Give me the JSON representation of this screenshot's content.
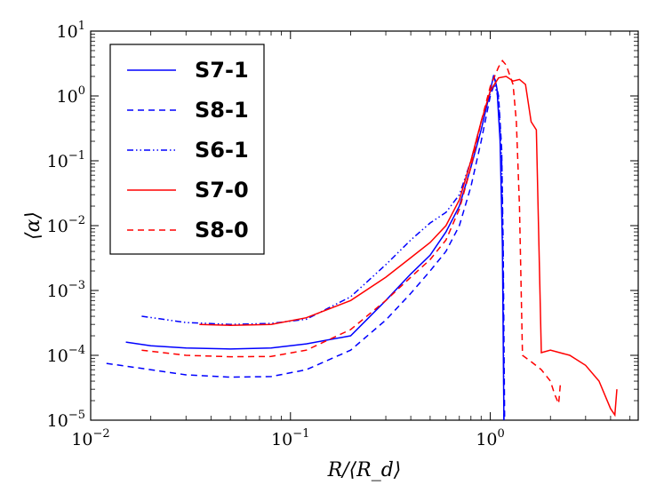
{
  "chart_data": {
    "type": "line",
    "title": "",
    "xlabel": "R/⟨R_d⟩",
    "ylabel": "⟨α⟩",
    "xscale": "log",
    "yscale": "log",
    "xlim": [
      0.01,
      5.5
    ],
    "ylim": [
      1e-05,
      10
    ],
    "legend_position": "upper-left",
    "x_ticks": [
      {
        "value": 0.01,
        "base": "10",
        "exp": "−2"
      },
      {
        "value": 0.1,
        "base": "10",
        "exp": "−1"
      },
      {
        "value": 1,
        "base": "10",
        "exp": "0"
      }
    ],
    "y_ticks": [
      {
        "value": 1e-05,
        "base": "10",
        "exp": "−5"
      },
      {
        "value": 0.0001,
        "base": "10",
        "exp": "−4"
      },
      {
        "value": 0.001,
        "base": "10",
        "exp": "−3"
      },
      {
        "value": 0.01,
        "base": "10",
        "exp": "−2"
      },
      {
        "value": 0.1,
        "base": "10",
        "exp": "−1"
      },
      {
        "value": 1,
        "base": "10",
        "exp": "0"
      },
      {
        "value": 10,
        "base": "10",
        "exp": "1"
      }
    ],
    "series": [
      {
        "name": "S7-1",
        "color": "#0000ff",
        "style": "solid",
        "points": [
          [
            0.015,
            0.00016
          ],
          [
            0.02,
            0.00014
          ],
          [
            0.03,
            0.00013
          ],
          [
            0.05,
            0.000125
          ],
          [
            0.08,
            0.00013
          ],
          [
            0.12,
            0.00015
          ],
          [
            0.2,
            0.0002
          ],
          [
            0.3,
            0.0007
          ],
          [
            0.4,
            0.0018
          ],
          [
            0.5,
            0.0035
          ],
          [
            0.6,
            0.008
          ],
          [
            0.7,
            0.02
          ],
          [
            0.8,
            0.08
          ],
          [
            0.9,
            0.3
          ],
          [
            1.0,
            1.2
          ],
          [
            1.04,
            2.1
          ],
          [
            1.08,
            1.3
          ],
          [
            1.12,
            0.2
          ],
          [
            1.15,
            0.005
          ],
          [
            1.17,
            1e-05
          ]
        ]
      },
      {
        "name": "S8-1",
        "color": "#0000ff",
        "style": "dashed",
        "points": [
          [
            0.012,
            7.5e-05
          ],
          [
            0.02,
            6e-05
          ],
          [
            0.03,
            5e-05
          ],
          [
            0.05,
            4.6e-05
          ],
          [
            0.08,
            4.7e-05
          ],
          [
            0.12,
            6e-05
          ],
          [
            0.2,
            0.00012
          ],
          [
            0.3,
            0.00035
          ],
          [
            0.4,
            0.0009
          ],
          [
            0.5,
            0.002
          ],
          [
            0.6,
            0.004
          ],
          [
            0.7,
            0.01
          ],
          [
            0.8,
            0.04
          ],
          [
            0.9,
            0.2
          ],
          [
            1.0,
            1.0
          ],
          [
            1.06,
            1.7
          ],
          [
            1.1,
            1.0
          ],
          [
            1.14,
            0.15
          ],
          [
            1.16,
            0.005
          ],
          [
            1.18,
            1e-05
          ]
        ]
      },
      {
        "name": "S6-1",
        "color": "#0000ff",
        "style": "dashdotdot",
        "points": [
          [
            0.018,
            0.0004
          ],
          [
            0.03,
            0.00032
          ],
          [
            0.05,
            0.0003
          ],
          [
            0.08,
            0.00031
          ],
          [
            0.12,
            0.00036
          ],
          [
            0.2,
            0.0008
          ],
          [
            0.3,
            0.0025
          ],
          [
            0.4,
            0.006
          ],
          [
            0.5,
            0.011
          ],
          [
            0.6,
            0.016
          ],
          [
            0.7,
            0.03
          ],
          [
            0.8,
            0.1
          ],
          [
            0.9,
            0.4
          ],
          [
            1.0,
            1.1
          ],
          [
            1.05,
            1.5
          ],
          [
            1.1,
            0.9
          ],
          [
            1.14,
            0.1
          ],
          [
            1.16,
            0.002
          ],
          [
            1.17,
            1e-05
          ]
        ]
      },
      {
        "name": "S7-0",
        "color": "#ff0000",
        "style": "solid",
        "points": [
          [
            0.035,
            0.0003
          ],
          [
            0.05,
            0.00029
          ],
          [
            0.08,
            0.0003
          ],
          [
            0.12,
            0.00038
          ],
          [
            0.2,
            0.0007
          ],
          [
            0.3,
            0.0016
          ],
          [
            0.4,
            0.0032
          ],
          [
            0.5,
            0.0055
          ],
          [
            0.6,
            0.01
          ],
          [
            0.7,
            0.025
          ],
          [
            0.8,
            0.1
          ],
          [
            0.9,
            0.4
          ],
          [
            1.0,
            1.2
          ],
          [
            1.1,
            1.9
          ],
          [
            1.2,
            2.0
          ],
          [
            1.3,
            1.7
          ],
          [
            1.4,
            1.8
          ],
          [
            1.5,
            1.5
          ],
          [
            1.6,
            0.4
          ],
          [
            1.7,
            0.3
          ],
          [
            1.8,
            0.00011
          ],
          [
            2.0,
            0.00012
          ],
          [
            2.5,
            0.0001
          ],
          [
            3.0,
            7e-05
          ],
          [
            3.5,
            4e-05
          ],
          [
            4.0,
            1.5e-05
          ],
          [
            4.2,
            1.2e-05
          ],
          [
            4.3,
            3e-05
          ]
        ]
      },
      {
        "name": "S8-0",
        "color": "#ff0000",
        "style": "dashed",
        "points": [
          [
            0.018,
            0.00012
          ],
          [
            0.03,
            0.0001
          ],
          [
            0.05,
            9.5e-05
          ],
          [
            0.08,
            9.6e-05
          ],
          [
            0.12,
            0.00012
          ],
          [
            0.2,
            0.00025
          ],
          [
            0.3,
            0.0007
          ],
          [
            0.4,
            0.0016
          ],
          [
            0.5,
            0.003
          ],
          [
            0.6,
            0.006
          ],
          [
            0.7,
            0.018
          ],
          [
            0.8,
            0.08
          ],
          [
            0.9,
            0.4
          ],
          [
            1.0,
            1.4
          ],
          [
            1.1,
            2.8
          ],
          [
            1.15,
            3.5
          ],
          [
            1.2,
            3.0
          ],
          [
            1.3,
            1.5
          ],
          [
            1.35,
            0.4
          ],
          [
            1.4,
            0.02
          ],
          [
            1.45,
            0.0001
          ],
          [
            1.6,
            8e-05
          ],
          [
            1.8,
            6e-05
          ],
          [
            2.0,
            4e-05
          ],
          [
            2.1,
            2.5e-05
          ],
          [
            2.2,
            1.8e-05
          ],
          [
            2.25,
            4e-05
          ]
        ]
      }
    ]
  }
}
